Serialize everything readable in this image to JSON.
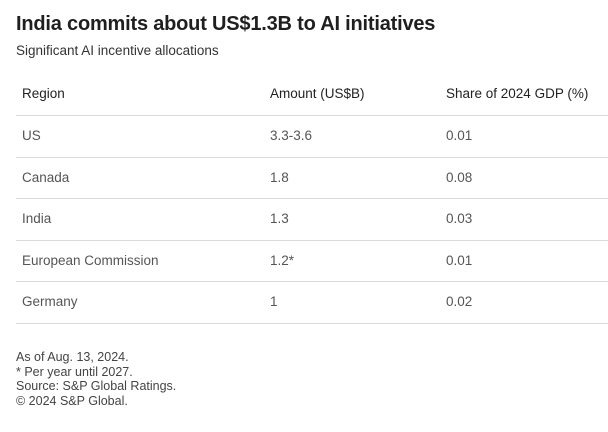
{
  "chart_data": {
    "type": "table",
    "title": "India commits about US$1.3B to AI initiatives",
    "subtitle": "Significant AI incentive allocations",
    "columns": [
      "Region",
      "Amount (US$B)",
      "Share of 2024 GDP (%)"
    ],
    "rows": [
      [
        "US",
        "3.3-3.6",
        "0.01"
      ],
      [
        "Canada",
        "1.8",
        "0.08"
      ],
      [
        "India",
        "1.3",
        "0.03"
      ],
      [
        "European Commission",
        "1.2*",
        "0.01"
      ],
      [
        "Germany",
        "1",
        "0.02"
      ]
    ],
    "notes": [
      "As of Aug. 13, 2024.",
      "* Per year until 2027.",
      "Source: S&P Global Ratings.",
      "© 2024 S&P Global."
    ]
  }
}
